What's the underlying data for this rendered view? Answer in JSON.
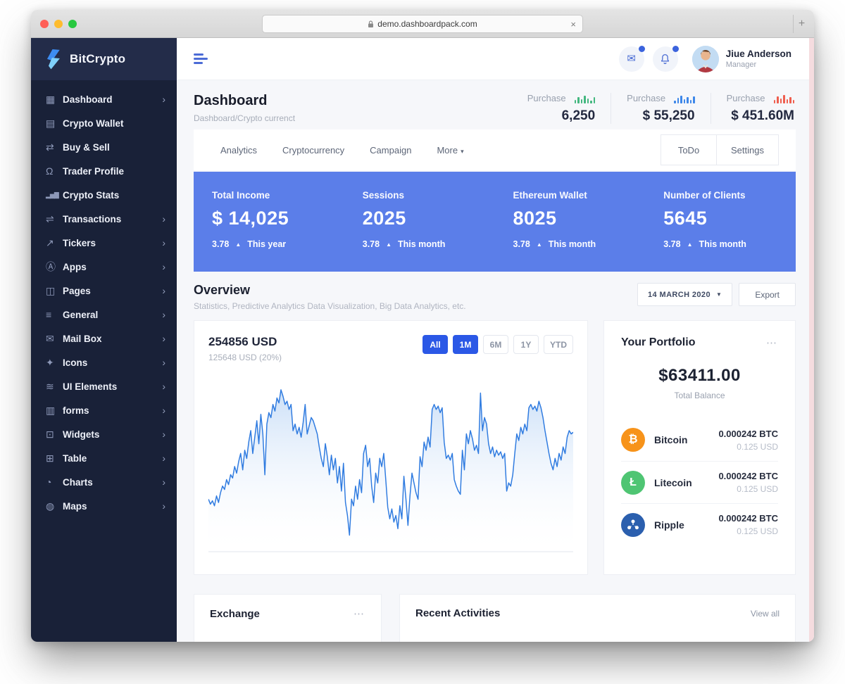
{
  "browser": {
    "url": "demo.dashboardpack.com",
    "close_label": "×",
    "new_tab_label": "+"
  },
  "sidebar": {
    "brand": "BitCrypto",
    "items": [
      {
        "label": "Dashboard",
        "icon": "grid-icon",
        "chevron": true
      },
      {
        "label": "Crypto Wallet",
        "icon": "wallet-icon",
        "chevron": false
      },
      {
        "label": "Buy & Sell",
        "icon": "cart-icon",
        "chevron": false
      },
      {
        "label": "Trader Profile",
        "icon": "person-icon",
        "chevron": false
      },
      {
        "label": "Crypto Stats",
        "icon": "stats-bars-icon",
        "chevron": false
      },
      {
        "label": "Transactions",
        "icon": "exchange-icon",
        "chevron": true
      },
      {
        "label": "Tickers",
        "icon": "trend-icon",
        "chevron": true
      },
      {
        "label": "Apps",
        "icon": "apps-icon",
        "chevron": true
      },
      {
        "label": "Pages",
        "icon": "pages-icon",
        "chevron": true
      },
      {
        "label": "General",
        "icon": "sliders-icon",
        "chevron": true
      },
      {
        "label": "Mail Box",
        "icon": "envelope-icon",
        "chevron": true
      },
      {
        "label": "Icons",
        "icon": "sparkle-icon",
        "chevron": true
      },
      {
        "label": "UI Elements",
        "icon": "layers-icon",
        "chevron": true
      },
      {
        "label": "forms",
        "icon": "form-icon",
        "chevron": true
      },
      {
        "label": "Widgets",
        "icon": "widget-icon",
        "chevron": true
      },
      {
        "label": "Table",
        "icon": "table-icon",
        "chevron": true
      },
      {
        "label": "Charts",
        "icon": "pie-chart-icon",
        "chevron": true
      },
      {
        "label": "Maps",
        "icon": "globe-icon",
        "chevron": true
      }
    ]
  },
  "header": {
    "user_name": "Jiue Anderson",
    "user_role": "Manager"
  },
  "page": {
    "title": "Dashboard",
    "breadcrumb": "Dashboard/Crypto currenct"
  },
  "purchase_stats": [
    {
      "label": "Purchase",
      "value": "6,250",
      "color": "#43b77f"
    },
    {
      "label": "Purchase",
      "value": "$ 55,250",
      "color": "#3d87e9"
    },
    {
      "label": "Purchase",
      "value": "$ 451.60M",
      "color": "#ef5e4e"
    }
  ],
  "tabs": {
    "items": [
      "Analytics",
      "Cryptocurrency",
      "Campaign"
    ],
    "more_label": "More",
    "todo_label": "ToDo",
    "settings_label": "Settings"
  },
  "kpis": [
    {
      "label": "Total Income",
      "value": "$ 14,025",
      "delta": "3.78",
      "period": "This year"
    },
    {
      "label": "Sessions",
      "value": "2025",
      "delta": "3.78",
      "period": "This month"
    },
    {
      "label": "Ethereum Wallet",
      "value": "8025",
      "delta": "3.78",
      "period": "This month"
    },
    {
      "label": "Number of Clients",
      "value": "5645",
      "delta": "3.78",
      "period": "This month"
    }
  ],
  "overview": {
    "title": "Overview",
    "subtitle": "Statistics, Predictive Analytics Data Visualization, Big Data Analytics, etc.",
    "date_value": "14 MARCH 2020",
    "export_label": "Export"
  },
  "chart_card": {
    "value": "254856 USD",
    "subvalue": "125648 USD (20%)",
    "ranges": [
      {
        "label": "All",
        "active": true
      },
      {
        "label": "1M",
        "active": true
      },
      {
        "label": "6M",
        "active": false
      },
      {
        "label": "1Y",
        "active": false
      },
      {
        "label": "YTD",
        "active": false
      }
    ]
  },
  "chart_data": {
    "type": "area",
    "title": "254856 USD price history",
    "xlabel": "",
    "ylabel": "",
    "ylim": [
      0,
      100
    ],
    "grid": false,
    "legend": "none",
    "line_color": "#2f7be0",
    "fill_top_color": "#c9def7",
    "values": [
      30,
      27,
      29,
      26,
      32,
      28,
      34,
      38,
      36,
      42,
      39,
      45,
      43,
      50,
      46,
      53,
      58,
      48,
      60,
      55,
      65,
      72,
      58,
      68,
      78,
      64,
      82,
      70,
      45,
      76,
      83,
      80,
      88,
      84,
      92,
      89,
      97,
      93,
      88,
      90,
      85,
      88,
      72,
      76,
      70,
      74,
      68,
      77,
      88,
      70,
      75,
      80,
      78,
      74,
      70,
      62,
      55,
      50,
      64,
      56,
      45,
      57,
      48,
      55,
      40,
      50,
      35,
      52,
      28,
      20,
      8,
      30,
      26,
      38,
      30,
      42,
      34,
      58,
      63,
      50,
      55,
      38,
      28,
      46,
      40,
      55,
      50,
      58,
      42,
      25,
      18,
      24,
      16,
      20,
      12,
      26,
      18,
      44,
      30,
      14,
      32,
      46,
      40,
      34,
      30,
      56,
      50,
      65,
      60,
      68,
      62,
      85,
      88,
      85,
      87,
      83,
      86,
      65,
      55,
      57,
      54,
      58,
      42,
      38,
      35,
      33,
      60,
      48,
      70,
      64,
      72,
      67,
      60,
      63,
      58,
      95,
      72,
      80,
      76,
      64,
      58,
      62,
      56,
      60,
      57,
      59,
      55,
      58,
      35,
      40,
      38,
      45,
      58,
      70,
      66,
      74,
      70,
      76,
      72,
      86,
      88,
      85,
      87,
      84,
      90,
      86,
      80,
      72,
      65,
      58,
      52,
      48,
      55,
      50,
      58,
      54,
      62,
      58,
      68,
      72,
      70,
      71
    ]
  },
  "portfolio": {
    "title": "Your Portfolio",
    "menu_icon": "⋯",
    "balance": "$63411.00",
    "balance_label": "Total Balance",
    "assets": [
      {
        "name": "Bitcoin",
        "icon": "bitcoin-icon",
        "symbol": "₿",
        "color": "#f7931a",
        "amount": "0.000242 BTC",
        "usd": "0.125 USD"
      },
      {
        "name": "Litecoin",
        "icon": "litecoin-icon",
        "symbol": "Ł",
        "color": "#4fc573",
        "amount": "0.000242 BTC",
        "usd": "0.125 USD"
      },
      {
        "name": "Ripple",
        "icon": "ripple-icon",
        "symbol": "ripple",
        "color": "#2b5fae",
        "amount": "0.000242 BTC",
        "usd": "0.125 USD"
      }
    ]
  },
  "bottom": {
    "exchange_title": "Exchange",
    "exchange_menu_icon": "⋯",
    "recent_title": "Recent Activities",
    "view_all_label": "View all"
  }
}
